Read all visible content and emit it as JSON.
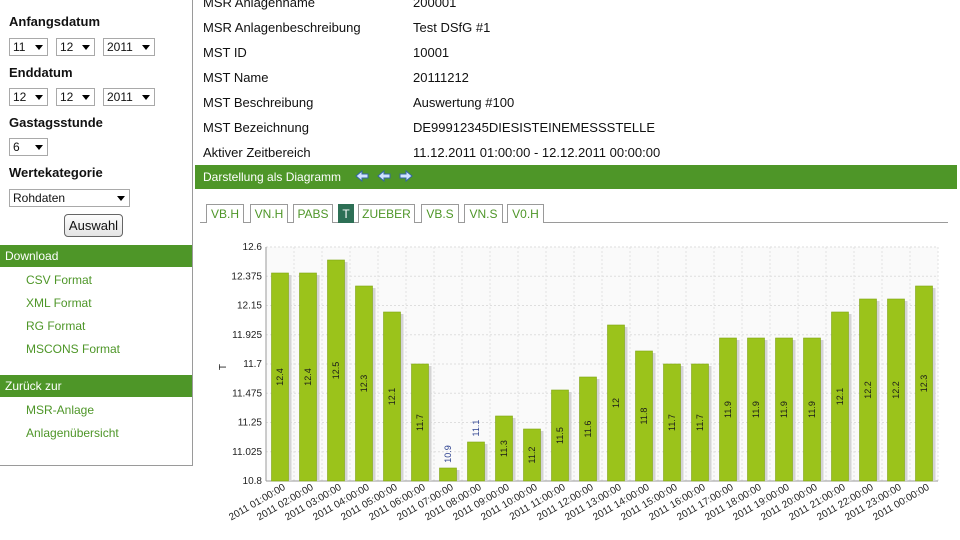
{
  "sidebar": {
    "start_label": "Anfangsdatum",
    "start_day": "11",
    "start_month": "12",
    "start_year": "2011",
    "end_label": "Enddatum",
    "end_day": "12",
    "end_month": "12",
    "end_year": "2011",
    "hour_label": "Gastagsstunde",
    "hour_value": "6",
    "category_label": "Wertekategorie",
    "category_value": "Rohdaten",
    "select_button": "Auswahl",
    "download_header": "Download",
    "download_links": [
      "CSV Format",
      "XML Format",
      "RG Format",
      "MSCONS Format"
    ],
    "back_header": "Zurück zur",
    "back_links": [
      "MSR-Anlage",
      "Anlagenübersicht"
    ]
  },
  "info": [
    {
      "key": "MSR Anlagenname",
      "value": "200001"
    },
    {
      "key": "MSR Anlagenbeschreibung",
      "value": "Test DSfG #1"
    },
    {
      "key": "MST ID",
      "value": "10001"
    },
    {
      "key": "MST Name",
      "value": "20111212"
    },
    {
      "key": "MST Beschreibung",
      "value": "Auswertung #100"
    },
    {
      "key": "MST Bezeichnung",
      "value": "DE99912345DIESISTEINEMESSSTELLE"
    },
    {
      "key": "Aktiver Zeitbereich",
      "value": "11.12.2011 01:00:00 - 12.12.2011 00:00:00"
    }
  ],
  "diagram_bar": {
    "title": "Darstellung als Diagramm",
    "icons": [
      "arrow-left-icon",
      "arrow-left-icon",
      "arrow-right-icon"
    ]
  },
  "tabs": [
    {
      "label": "VB.H",
      "active": false
    },
    {
      "label": "VN.H",
      "active": false
    },
    {
      "label": "PABS",
      "active": false
    },
    {
      "label": "T",
      "active": true
    },
    {
      "label": "ZUEBER",
      "active": false
    },
    {
      "label": "VB.S",
      "active": false
    },
    {
      "label": "VN.S",
      "active": false
    },
    {
      "label": "V0.H",
      "active": false
    }
  ],
  "colors": {
    "accent": "#4e9628",
    "bar": "#9bc31b",
    "active_tab": "#2d6f55"
  },
  "chart_data": {
    "type": "bar",
    "ylabel": "T",
    "ylim": [
      10.8,
      12.6
    ],
    "yticks": [
      "12.6",
      "12.375",
      "12.15",
      "11.925",
      "11.7",
      "11.475",
      "11.25",
      "11.025",
      "10.8"
    ],
    "grid": true,
    "categories": [
      "2011 01:00:00",
      "2011 02:00:00",
      "2011 03:00:00",
      "2011 04:00:00",
      "2011 05:00:00",
      "2011 06:00:00",
      "2011 07:00:00",
      "2011 08:00:00",
      "2011 09:00:00",
      "2011 10:00:00",
      "2011 11:00:00",
      "2011 12:00:00",
      "2011 13:00:00",
      "2011 14:00:00",
      "2011 15:00:00",
      "2011 16:00:00",
      "2011 17:00:00",
      "2011 18:00:00",
      "2011 19:00:00",
      "2011 20:00:00",
      "2011 21:00:00",
      "2011 22:00:00",
      "2011 23:00:00",
      "2011 00:00:00"
    ],
    "values": [
      12.4,
      12.4,
      12.5,
      12.3,
      12.1,
      11.7,
      10.9,
      11.1,
      11.3,
      11.2,
      11.5,
      11.6,
      12,
      11.8,
      11.7,
      11.7,
      11.9,
      11.9,
      11.9,
      11.9,
      12.1,
      12.2,
      12.2,
      12.3
    ],
    "value_labels": [
      "12.4",
      "12.4",
      "12.5",
      "12.3",
      "12.1",
      "11.7",
      "10.9",
      "11.1",
      "11.3",
      "11.2",
      "11.5",
      "11.6",
      "12",
      "11.8",
      "11.7",
      "11.7",
      "11.9",
      "11.9",
      "11.9",
      "11.9",
      "12.1",
      "12.2",
      "12.2",
      "12.3"
    ]
  }
}
